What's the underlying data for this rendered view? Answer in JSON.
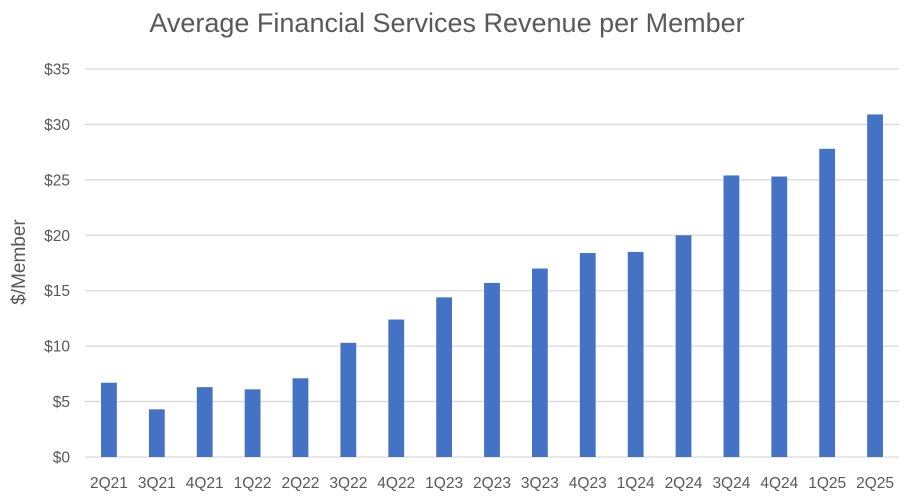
{
  "chart_data": {
    "type": "bar",
    "title": "Average Financial Services Revenue per Member",
    "xlabel": "",
    "ylabel": "$/Member",
    "categories": [
      "2Q21",
      "3Q21",
      "4Q21",
      "1Q22",
      "2Q22",
      "3Q22",
      "4Q22",
      "1Q23",
      "2Q23",
      "3Q23",
      "4Q23",
      "1Q24",
      "2Q24",
      "3Q24",
      "4Q24",
      "1Q25",
      "2Q25"
    ],
    "values": [
      6.7,
      4.3,
      6.3,
      6.1,
      7.1,
      10.3,
      12.4,
      14.4,
      15.7,
      17.0,
      18.4,
      18.5,
      20.0,
      25.4,
      25.3,
      27.8,
      30.9
    ],
    "ylim": [
      0,
      35
    ],
    "yticks": [
      0,
      5,
      10,
      15,
      20,
      25,
      30,
      35
    ],
    "ytick_labels": [
      "$0",
      "$5",
      "$10",
      "$15",
      "$20",
      "$25",
      "$30",
      "$35"
    ],
    "grid": true,
    "legend": "none",
    "bar_color": "#4472c4"
  }
}
